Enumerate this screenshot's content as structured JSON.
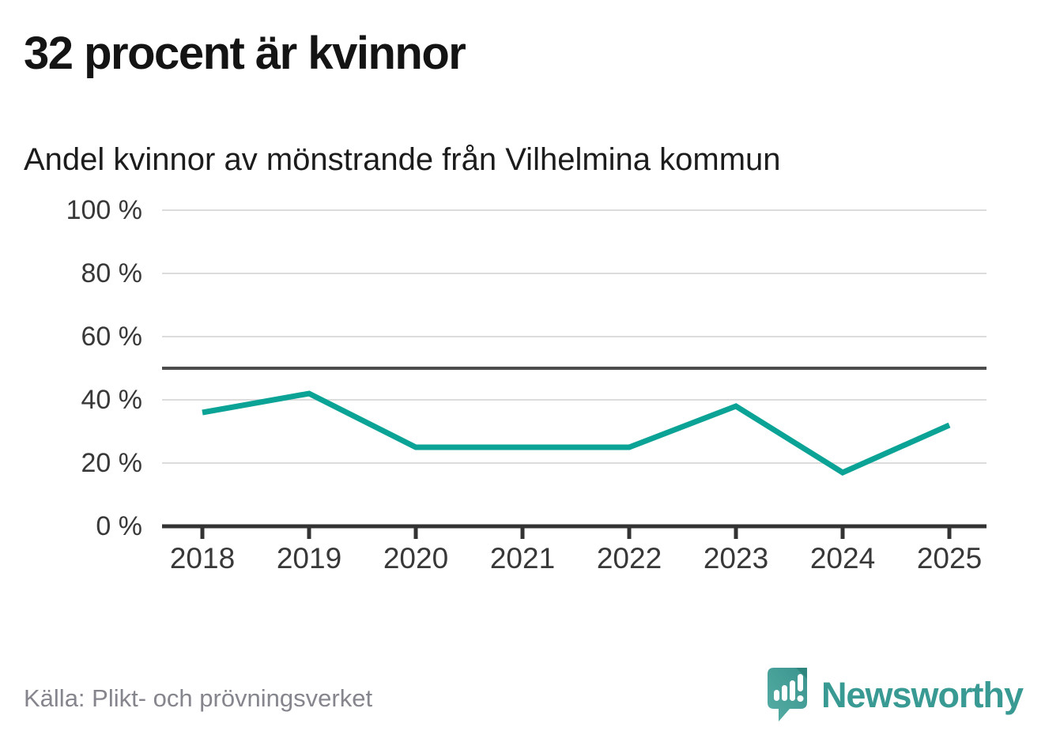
{
  "header": {
    "title": "32 procent är kvinnor",
    "subtitle": "Andel kvinnor av mönstrande från Vilhelmina kommun"
  },
  "chart_data": {
    "type": "line",
    "title": "32 procent är kvinnor",
    "subtitle": "Andel kvinnor av mönstrande från Vilhelmina kommun",
    "categories": [
      "2018",
      "2019",
      "2020",
      "2021",
      "2022",
      "2023",
      "2024",
      "2025"
    ],
    "series": [
      {
        "name": "Andel kvinnor av mönstrande",
        "values": [
          36,
          42,
          25,
          25,
          25,
          38,
          17,
          32
        ]
      }
    ],
    "unit": "%",
    "ylim": [
      0,
      100
    ],
    "yticks": [
      0,
      20,
      40,
      60,
      80,
      100
    ],
    "ytick_labels": [
      "0 %",
      "20 %",
      "40 %",
      "60 %",
      "80 %",
      "100 %"
    ],
    "reference_line": 50,
    "grid": true,
    "legend_position": "none",
    "colors": {
      "line": "#0aa396",
      "reference": "#4d4d4d",
      "grid": "#dcdcdc",
      "axis": "#333333"
    }
  },
  "footer": {
    "source": "Källa: Plikt- och prövningsverket",
    "brand": "Newsworthy",
    "brand_color": "#399a94"
  }
}
